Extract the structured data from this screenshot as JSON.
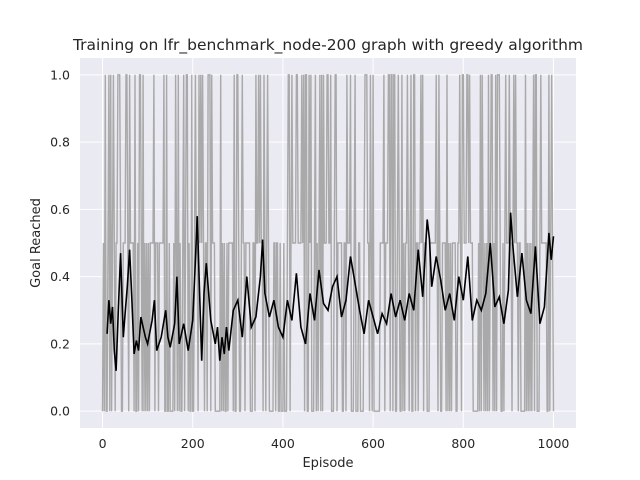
{
  "chart_data": {
    "type": "line",
    "title": "Training on lfr_benchmark_node-200 graph with greedy algorithm",
    "xlabel": "Episode",
    "ylabel": "Goal Reached",
    "xlim": [
      -50,
      1050
    ],
    "ylim": [
      -0.05,
      1.05
    ],
    "xticks": [
      0,
      200,
      400,
      600,
      800,
      1000
    ],
    "xtick_labels": [
      "0",
      "200",
      "400",
      "600",
      "800",
      "1000"
    ],
    "yticks": [
      0.0,
      0.2,
      0.4,
      0.6,
      0.8,
      1.0
    ],
    "ytick_labels": [
      "0.0",
      "0.2",
      "0.4",
      "0.6",
      "0.8",
      "1.0"
    ],
    "grid": true,
    "background": "#eaeaf2",
    "series": [
      {
        "style": "raw",
        "color": "#a9a9a9",
        "description": "per-episode values, alternating among 0.0, 0.5 and 1.0 over episodes 0-1000"
      },
      {
        "style": "smoothed",
        "color": "#000000",
        "x": [
          10,
          14,
          18,
          22,
          26,
          30,
          35,
          40,
          46,
          50,
          55,
          60,
          65,
          70,
          75,
          80,
          85,
          90,
          95,
          100,
          110,
          115,
          120,
          130,
          140,
          145,
          150,
          160,
          165,
          170,
          180,
          190,
          200,
          205,
          210,
          215,
          220,
          225,
          230,
          240,
          250,
          255,
          260,
          265,
          270,
          275,
          280,
          290,
          300,
          310,
          320,
          330,
          340,
          350,
          355,
          360,
          370,
          380,
          390,
          400,
          410,
          420,
          430,
          440,
          450,
          460,
          470,
          480,
          490,
          500,
          510,
          520,
          530,
          540,
          550,
          560,
          570,
          580,
          590,
          600,
          610,
          620,
          630,
          640,
          650,
          660,
          670,
          680,
          690,
          700,
          710,
          720,
          725,
          730,
          740,
          750,
          760,
          770,
          780,
          790,
          800,
          810,
          820,
          830,
          840,
          850,
          860,
          870,
          880,
          890,
          900,
          905,
          910,
          920,
          930,
          940,
          950,
          960,
          970,
          980,
          990,
          995,
          1000
        ],
        "y": [
          0.23,
          0.33,
          0.26,
          0.31,
          0.18,
          0.12,
          0.3,
          0.47,
          0.22,
          0.29,
          0.37,
          0.48,
          0.33,
          0.17,
          0.21,
          0.18,
          0.28,
          0.25,
          0.22,
          0.2,
          0.27,
          0.33,
          0.18,
          0.22,
          0.3,
          0.22,
          0.19,
          0.26,
          0.4,
          0.2,
          0.26,
          0.18,
          0.27,
          0.42,
          0.58,
          0.36,
          0.15,
          0.35,
          0.44,
          0.27,
          0.2,
          0.25,
          0.15,
          0.22,
          0.17,
          0.25,
          0.18,
          0.3,
          0.33,
          0.22,
          0.4,
          0.25,
          0.28,
          0.4,
          0.51,
          0.35,
          0.28,
          0.33,
          0.25,
          0.22,
          0.33,
          0.27,
          0.41,
          0.25,
          0.2,
          0.35,
          0.27,
          0.42,
          0.32,
          0.3,
          0.37,
          0.4,
          0.28,
          0.33,
          0.46,
          0.38,
          0.3,
          0.23,
          0.33,
          0.28,
          0.23,
          0.29,
          0.26,
          0.35,
          0.28,
          0.33,
          0.27,
          0.35,
          0.3,
          0.48,
          0.34,
          0.57,
          0.51,
          0.37,
          0.46,
          0.39,
          0.3,
          0.35,
          0.27,
          0.4,
          0.33,
          0.46,
          0.27,
          0.33,
          0.3,
          0.35,
          0.5,
          0.31,
          0.34,
          0.26,
          0.36,
          0.59,
          0.49,
          0.34,
          0.47,
          0.33,
          0.29,
          0.49,
          0.26,
          0.31,
          0.53,
          0.45,
          0.52
        ]
      }
    ]
  }
}
